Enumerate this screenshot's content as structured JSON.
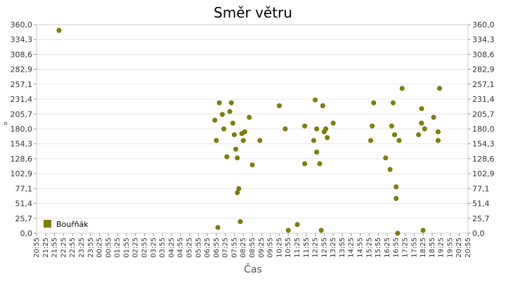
{
  "chart_data": {
    "type": "scatter",
    "title": "Směr větru",
    "xlabel": "Čas",
    "ylabel": "°",
    "ylim": [
      0,
      360
    ],
    "grid": true,
    "legend_position": "bottom-left",
    "y_ticks": [
      "0,0",
      "25,7",
      "51,4",
      "77,1",
      "102,9",
      "128,6",
      "154,3",
      "180,0",
      "205,7",
      "231,4",
      "257,1",
      "282,9",
      "308,6",
      "334,3",
      "360,0"
    ],
    "x_ticks": [
      "20:55",
      "21:25",
      "21:55",
      "22:25",
      "22:55",
      "23:25",
      "23:55",
      "00:25",
      "00:55",
      "01:25",
      "01:55",
      "02:25",
      "02:55",
      "03:25",
      "03:55",
      "04:25",
      "04:55",
      "05:25",
      "05:55",
      "06:25",
      "06:55",
      "07:25",
      "07:55",
      "08:25",
      "08:55",
      "09:25",
      "09:55",
      "10:25",
      "10:55",
      "11:25",
      "11:55",
      "12:25",
      "12:55",
      "13:25",
      "13:55",
      "14:25",
      "14:55",
      "15:25",
      "15:55",
      "16:25",
      "16:55",
      "17:25",
      "17:55",
      "18:25",
      "18:55",
      "19:25",
      "19:55",
      "20:25",
      "20:55"
    ],
    "series": [
      {
        "name": "Bouřňák",
        "color": "#808000",
        "points": [
          [
            "22:10",
            350
          ],
          [
            "06:50",
            195
          ],
          [
            "06:55",
            160
          ],
          [
            "07:05",
            225
          ],
          [
            "07:15",
            205
          ],
          [
            "07:20",
            180
          ],
          [
            "07:30",
            132
          ],
          [
            "07:40",
            210
          ],
          [
            "07:45",
            225
          ],
          [
            "07:50",
            190
          ],
          [
            "07:55",
            170
          ],
          [
            "08:00",
            145
          ],
          [
            "08:05",
            70
          ],
          [
            "08:05",
            130
          ],
          [
            "08:10",
            77
          ],
          [
            "08:15",
            20
          ],
          [
            "08:20",
            172
          ],
          [
            "08:25",
            160
          ],
          [
            "08:30",
            175
          ],
          [
            "08:45",
            200
          ],
          [
            "08:55",
            118
          ],
          [
            "09:20",
            160
          ],
          [
            "10:25",
            220
          ],
          [
            "10:45",
            180
          ],
          [
            "10:55",
            5
          ],
          [
            "11:25",
            15
          ],
          [
            "11:50",
            185
          ],
          [
            "11:50",
            120
          ],
          [
            "12:20",
            160
          ],
          [
            "12:25",
            230
          ],
          [
            "12:30",
            140
          ],
          [
            "12:30",
            180
          ],
          [
            "12:40",
            120
          ],
          [
            "12:45",
            5
          ],
          [
            "12:50",
            220
          ],
          [
            "12:55",
            175
          ],
          [
            "13:00",
            180
          ],
          [
            "13:05",
            165
          ],
          [
            "13:25",
            190
          ],
          [
            "15:30",
            160
          ],
          [
            "15:35",
            185
          ],
          [
            "15:40",
            225
          ],
          [
            "16:20",
            130
          ],
          [
            "16:35",
            110
          ],
          [
            "16:40",
            185
          ],
          [
            "16:45",
            225
          ],
          [
            "16:50",
            170
          ],
          [
            "16:55",
            80
          ],
          [
            "16:55",
            60
          ],
          [
            "17:00",
            0
          ],
          [
            "17:05",
            160
          ],
          [
            "17:15",
            250
          ],
          [
            "18:10",
            170
          ],
          [
            "18:20",
            215
          ],
          [
            "18:20",
            190
          ],
          [
            "18:25",
            5
          ],
          [
            "18:30",
            180
          ],
          [
            "19:00",
            200
          ],
          [
            "19:15",
            175
          ],
          [
            "19:15",
            160
          ],
          [
            "19:20",
            250
          ],
          [
            "07:00",
            10
          ]
        ]
      }
    ]
  }
}
